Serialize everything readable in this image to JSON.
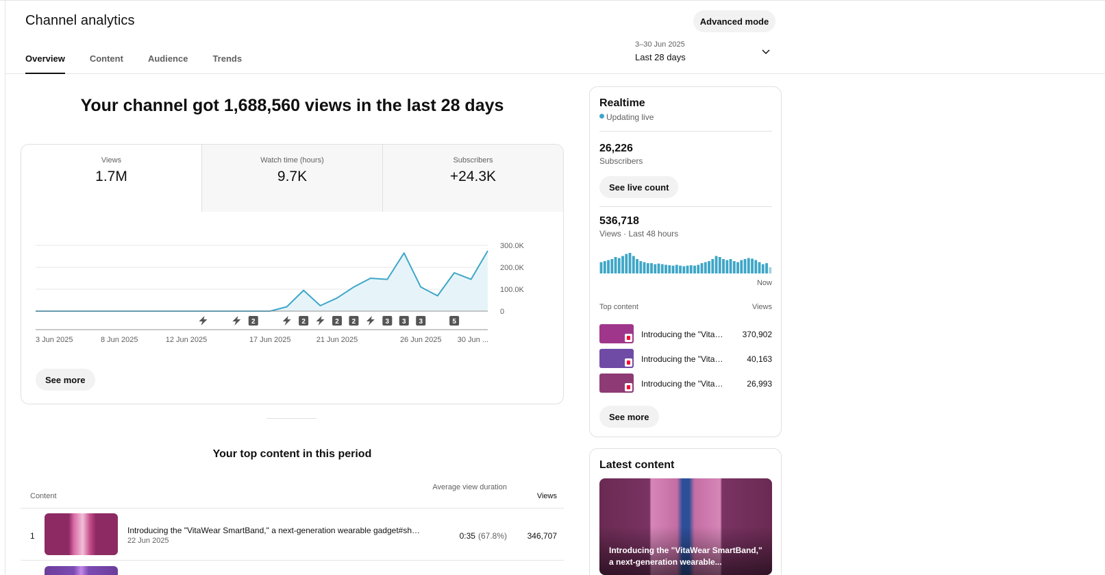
{
  "header": {
    "title": "Channel analytics",
    "advanced_mode_label": "Advanced mode",
    "tabs": [
      {
        "label": "Overview",
        "active": true
      },
      {
        "label": "Content",
        "active": false
      },
      {
        "label": "Audience",
        "active": false
      },
      {
        "label": "Trends",
        "active": false
      }
    ],
    "date_range": {
      "range": "3–30 Jun 2025",
      "period": "Last 28 days"
    }
  },
  "overview": {
    "headline": "Your channel got 1,688,560 views in the last 28 days",
    "metrics": [
      {
        "label": "Views",
        "value": "1.7M",
        "selected": true
      },
      {
        "label": "Watch time (hours)",
        "value": "9.7K",
        "selected": false
      },
      {
        "label": "Subscribers",
        "value": "+24.3K",
        "selected": false
      }
    ],
    "see_more_label": "See more"
  },
  "chart_data": {
    "type": "area",
    "series": [
      {
        "name": "Views",
        "values": [
          0,
          0,
          0,
          0,
          0,
          0,
          0,
          0,
          0,
          0,
          0,
          0,
          0,
          0,
          0,
          20000,
          95000,
          25000,
          60000,
          110000,
          150000,
          145000,
          265000,
          110000,
          70000,
          175000,
          145000,
          275000
        ]
      }
    ],
    "x_tick_labels": [
      "3 Jun 2025",
      "8 Jun 2025",
      "12 Jun 2025",
      "17 Jun 2025",
      "21 Jun 2025",
      "26 Jun 2025",
      "30 Jun ..."
    ],
    "y_tick_labels": [
      "300.0K",
      "200.0K",
      "100.0K",
      "0"
    ],
    "ylim": [
      0,
      300000
    ],
    "grid": true,
    "upload_markers": [
      {
        "day_index": 10,
        "label": ""
      },
      {
        "day_index": 12,
        "label": ""
      },
      {
        "day_index": 13,
        "label": "2"
      },
      {
        "day_index": 15,
        "label": ""
      },
      {
        "day_index": 16,
        "label": "2"
      },
      {
        "day_index": 17,
        "label": ""
      },
      {
        "day_index": 18,
        "label": "2"
      },
      {
        "day_index": 19,
        "label": "2"
      },
      {
        "day_index": 20,
        "label": ""
      },
      {
        "day_index": 21,
        "label": "3"
      },
      {
        "day_index": 22,
        "label": "3"
      },
      {
        "day_index": 23,
        "label": "3"
      },
      {
        "day_index": 25,
        "label": "5"
      }
    ],
    "colors": {
      "line": "#3ea6c7",
      "fill": "#e6f4f9",
      "marker": "#555555"
    }
  },
  "top_content": {
    "title": "Your top content in this period",
    "columns": {
      "content": "Content",
      "avg_duration": "Average view duration",
      "views": "Views"
    },
    "rows": [
      {
        "rank": "1",
        "title": "Introducing the \"VitaWear SmartBand,\" a next-generation wearable gadget#shorts #gadgets #tech",
        "date": "22 Jun 2025",
        "duration": "0:35",
        "duration_pct": "(67.8%)",
        "views": "346,707"
      }
    ]
  },
  "realtime": {
    "title": "Realtime",
    "status": "Updating live",
    "subscribers_value": "26,226",
    "subscribers_label": "Subscribers",
    "see_live_count_label": "See live count",
    "views_value": "536,718",
    "views_label": "Views · Last 48 hours",
    "now_label": "Now",
    "hourly_views_relative": [
      0.55,
      0.6,
      0.65,
      0.7,
      0.8,
      0.75,
      0.85,
      0.95,
      1.0,
      0.85,
      0.7,
      0.6,
      0.55,
      0.5,
      0.5,
      0.45,
      0.48,
      0.45,
      0.42,
      0.4,
      0.38,
      0.42,
      0.38,
      0.35,
      0.38,
      0.4,
      0.38,
      0.42,
      0.5,
      0.55,
      0.6,
      0.7,
      0.85,
      0.8,
      0.7,
      0.65,
      0.7,
      0.6,
      0.55,
      0.65,
      0.7,
      0.75,
      0.72,
      0.65,
      0.55,
      0.45,
      0.5,
      0.3
    ],
    "top_content_label": "Top content",
    "top_content_views_label": "Views",
    "items": [
      {
        "title": "Introducing the \"VitaWear SmartBand,\" a next-generation wearable gadget",
        "views": "370,902",
        "thumb_color": "#a0368b"
      },
      {
        "title": "Introducing the \"VitaWear SmartBand,\" a next-generation wearable gadget",
        "views": "40,163",
        "thumb_color": "#6f4ba6"
      },
      {
        "title": "Introducing the \"VitaWear SmartBand,\" a next-generation wearable gadget",
        "views": "26,993",
        "thumb_color": "#8e3a74"
      }
    ],
    "see_more_label": "See more"
  },
  "latest_content": {
    "title": "Latest content",
    "caption": "Introducing the \"VitaWear SmartBand,\" a next-generation wearable..."
  }
}
